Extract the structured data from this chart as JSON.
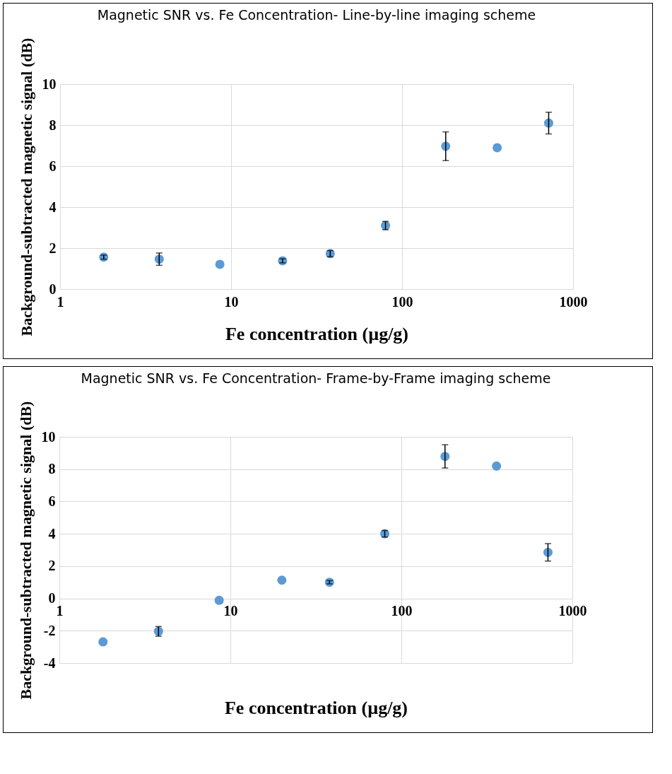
{
  "chart_data": [
    {
      "type": "scatter",
      "title": "Magnetic SNR vs. Fe Concentration- Line-by-line imaging scheme",
      "xlabel": "Fe concentration (µg/g)",
      "ylabel": "Background-subtracted magnetic signal  (dB)",
      "log": "x",
      "xlim": [
        1,
        1000
      ],
      "xticks": [
        1,
        10,
        100,
        1000
      ],
      "ylim": [
        0,
        10
      ],
      "yticks": [
        0,
        2,
        4,
        6,
        8,
        10
      ],
      "grid": true,
      "marker": "circle",
      "x": [
        1.8,
        3.8,
        8.6,
        20,
        38,
        80,
        180,
        360,
        720
      ],
      "series": [
        {
          "color": "#5b9bd5",
          "values": [
            1.56,
            1.46,
            1.21,
            1.38,
            1.73,
            3.1,
            6.97,
            6.9,
            8.1
          ],
          "errors": [
            0.1,
            0.3,
            null,
            0.1,
            0.15,
            0.2,
            0.7,
            null,
            0.53
          ]
        }
      ]
    },
    {
      "type": "scatter",
      "title": "Magnetic SNR vs. Fe Concentration- Frame-by-Frame imaging scheme",
      "xlabel": "Fe concentration (µg/g)",
      "ylabel": "Background-subtracted magnetic signal  (dB)",
      "log": "x",
      "xlim": [
        1,
        1000
      ],
      "xticks": [
        1,
        10,
        100,
        1000
      ],
      "ylim": [
        -4,
        10
      ],
      "yticks": [
        -4,
        -2,
        0,
        2,
        4,
        6,
        8,
        10
      ],
      "grid": true,
      "marker": "circle",
      "x": [
        1.8,
        3.8,
        8.6,
        20,
        38,
        80,
        180,
        360,
        720
      ],
      "series": [
        {
          "color": "#5b9bd5",
          "values": [
            -2.69,
            -2.04,
            -0.12,
            1.13,
            1.0,
            4.0,
            8.79,
            8.19,
            2.85
          ],
          "errors": [
            null,
            0.3,
            null,
            null,
            0.1,
            0.2,
            0.72,
            null,
            0.54
          ]
        }
      ]
    }
  ]
}
